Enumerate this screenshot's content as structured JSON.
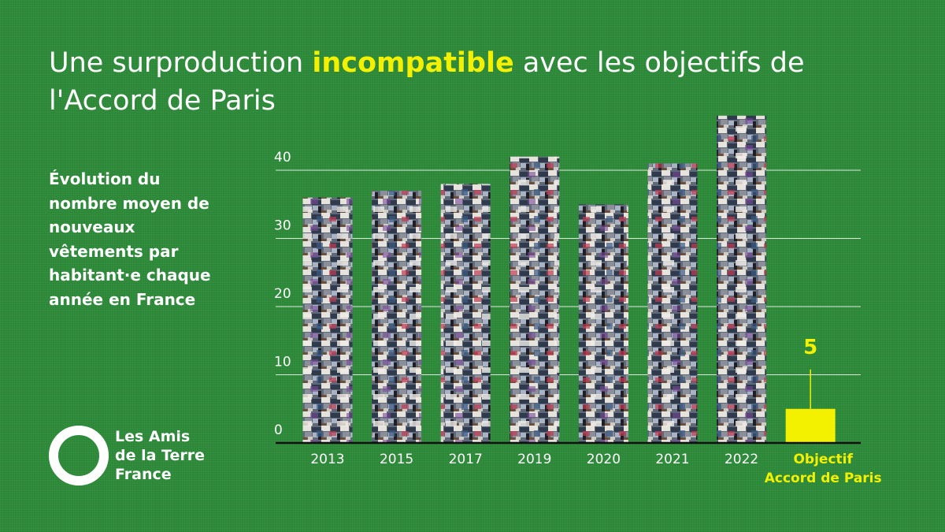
{
  "header": {
    "title_before": "Une surproduction ",
    "title_highlight": "incompatible",
    "title_after": " avec les objectifs de l'Accord de Paris",
    "subtitle": "Évolution du nombre moyen de nouveaux vêtements par habitant·e chaque année en France"
  },
  "logo": {
    "line1": "Les Amis",
    "line2": "de la Terre",
    "line3": "France",
    "icon": "ring-logo-icon"
  },
  "colors": {
    "background": "#2e8b3a",
    "highlight": "#f3f000",
    "text": "#ffffff",
    "axis": "#111111"
  },
  "chart_data": {
    "type": "bar",
    "categories": [
      "2013",
      "2015",
      "2017",
      "2019",
      "2020",
      "2021",
      "2022",
      "Objectif Accord de Paris"
    ],
    "category_lines": [
      [
        "2013"
      ],
      [
        "2015"
      ],
      [
        "2017"
      ],
      [
        "2019"
      ],
      [
        "2020"
      ],
      [
        "2021"
      ],
      [
        "2022"
      ],
      [
        "Objectif",
        "Accord de Paris"
      ]
    ],
    "values": [
      36,
      37,
      38,
      42,
      35,
      41,
      48,
      5
    ],
    "highlighted_category": "Objectif Accord de Paris",
    "data_labels": {
      "Objectif Accord de Paris": "5"
    },
    "yticks": [
      0,
      10,
      20,
      30,
      40
    ],
    "ylim": [
      0,
      48
    ],
    "grid": true,
    "title": "",
    "xlabel": "",
    "ylabel": ""
  }
}
